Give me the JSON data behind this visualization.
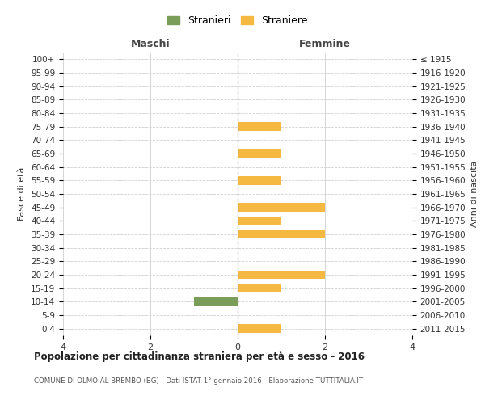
{
  "age_groups": [
    "100+",
    "95-99",
    "90-94",
    "85-89",
    "80-84",
    "75-79",
    "70-74",
    "65-69",
    "60-64",
    "55-59",
    "50-54",
    "45-49",
    "40-44",
    "35-39",
    "30-34",
    "25-29",
    "20-24",
    "15-19",
    "10-14",
    "5-9",
    "0-4"
  ],
  "birth_years": [
    "≤ 1915",
    "1916-1920",
    "1921-1925",
    "1926-1930",
    "1931-1935",
    "1936-1940",
    "1941-1945",
    "1946-1950",
    "1951-1955",
    "1956-1960",
    "1961-1965",
    "1966-1970",
    "1971-1975",
    "1976-1980",
    "1981-1985",
    "1986-1990",
    "1991-1995",
    "1996-2000",
    "2001-2005",
    "2006-2010",
    "2011-2015"
  ],
  "maschi_stranieri": [
    0,
    0,
    0,
    0,
    0,
    0,
    0,
    0,
    0,
    0,
    0,
    0,
    0,
    0,
    0,
    0,
    0,
    0,
    1,
    0,
    0
  ],
  "femmine_straniere": [
    0,
    0,
    0,
    0,
    0,
    1,
    0,
    1,
    0,
    1,
    0,
    2,
    1,
    2,
    0,
    0,
    2,
    1,
    0,
    0,
    1
  ],
  "color_maschi": "#7a9e5a",
  "color_femmine": "#f5b942",
  "xlim": 4,
  "title": "Popolazione per cittadinanza straniera per età e sesso - 2016",
  "subtitle": "COMUNE DI OLMO AL BREMBO (BG) - Dati ISTAT 1° gennaio 2016 - Elaborazione TUTTITALIA.IT",
  "ylabel_left": "Fasce di età",
  "ylabel_right": "Anni di nascita",
  "xlabel_maschi": "Maschi",
  "xlabel_femmine": "Femmine",
  "legend_stranieri": "Stranieri",
  "legend_straniere": "Straniere",
  "background_color": "#ffffff",
  "grid_color": "#d0d0d0"
}
